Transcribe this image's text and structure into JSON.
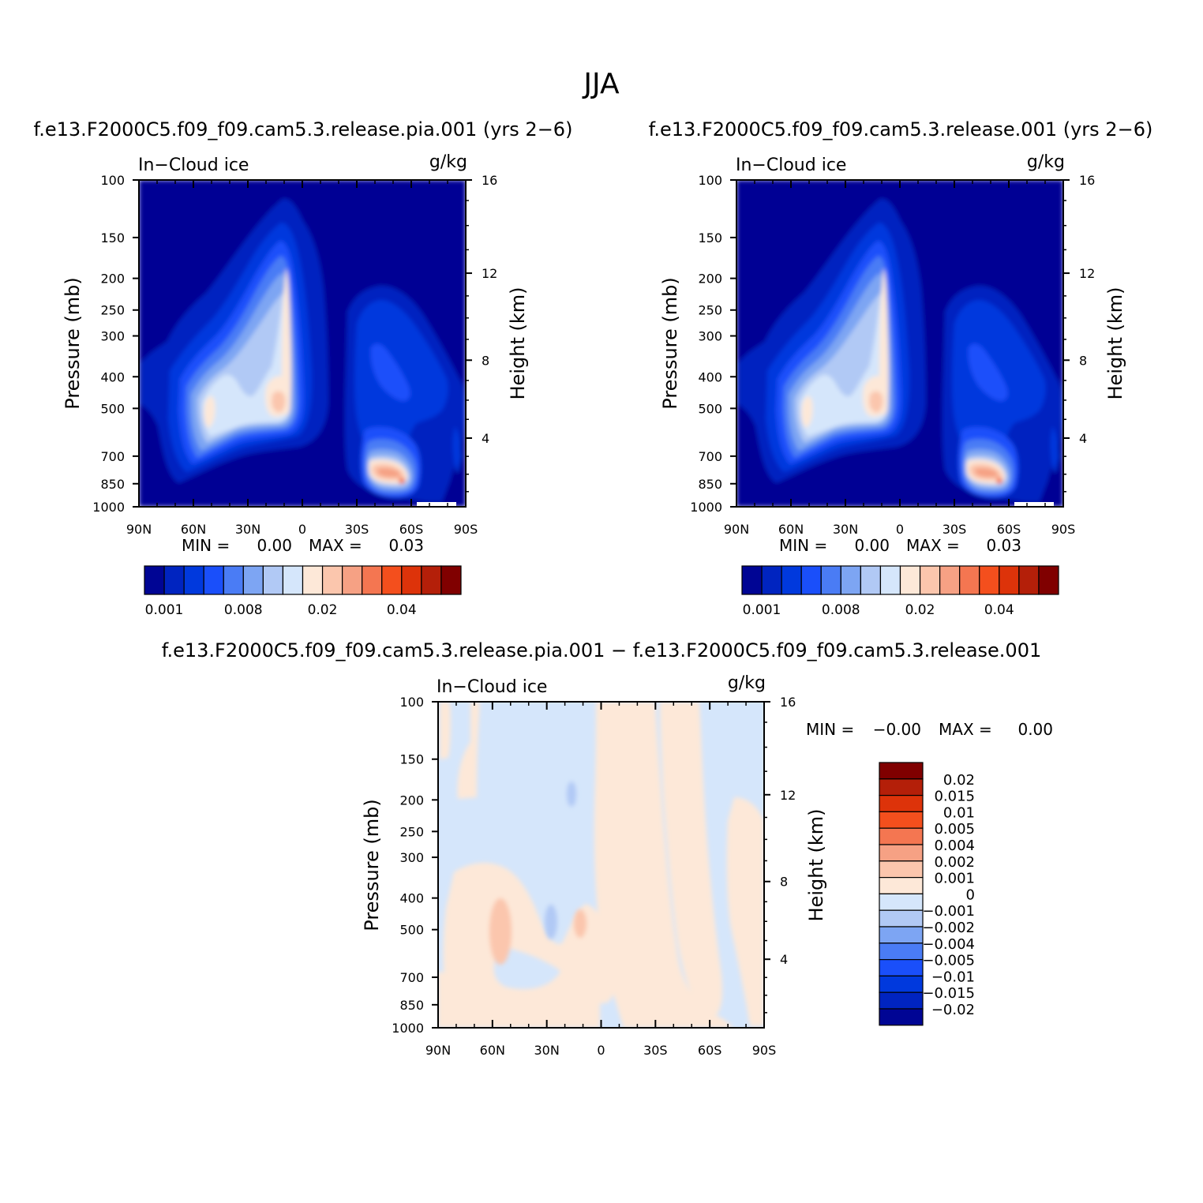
{
  "figure": {
    "title": "JJA"
  },
  "panels": {
    "left": {
      "case_title": "f.e13.F2000C5.f09_f09.cam5.3.release.pia.001  (yrs 2−6)",
      "left_label": "In−Cloud ice",
      "right_label": "g/kg",
      "min_label": "MIN =",
      "min_value": "0.00",
      "max_label": "MAX =",
      "max_value": "0.03"
    },
    "right": {
      "case_title": "f.e13.F2000C5.f09_f09.cam5.3.release.001  (yrs 2−6)",
      "left_label": "In−Cloud ice",
      "right_label": "g/kg",
      "min_label": "MIN =",
      "min_value": "0.00",
      "max_label": "MAX =",
      "max_value": "0.03"
    },
    "diff": {
      "case_title": "f.e13.F2000C5.f09_f09.cam5.3.release.pia.001  −  f.e13.F2000C5.f09_f09.cam5.3.release.001",
      "left_label": "In−Cloud ice",
      "right_label": "g/kg",
      "min_label": "MIN =",
      "min_value": "−0.00",
      "max_label": "MAX =",
      "max_value": "0.00"
    }
  },
  "axes": {
    "ylabel": "Pressure (mb)",
    "ylabel_right": "Height (km)",
    "pressure_ticks": [
      "100",
      "150",
      "200",
      "250",
      "300",
      "400",
      "500",
      "700",
      "850",
      "1000"
    ],
    "height_ticks": [
      "16",
      "12",
      "8",
      "4"
    ],
    "lat_ticks": [
      "90N",
      "60N",
      "30N",
      "0",
      "30S",
      "60S",
      "90S"
    ]
  },
  "colorbars": {
    "field_labels": [
      "0.001",
      "0.008",
      "0.02",
      "0.04"
    ],
    "field_colors": [
      "#000594",
      "#0024c0",
      "#0039dd",
      "#1a4ffa",
      "#4a7cf5",
      "#7da5f3",
      "#b1c9f5",
      "#d5e6fb",
      "#fde8d8",
      "#fbc6ad",
      "#f6a184",
      "#f47651",
      "#f44f1d",
      "#dd330a",
      "#b41f09",
      "#800000"
    ],
    "diff_labels": [
      "0.02",
      "0.015",
      "0.01",
      "0.005",
      "0.004",
      "0.002",
      "0.001",
      "0",
      "−0.001",
      "−0.002",
      "−0.004",
      "−0.005",
      "−0.01",
      "−0.015",
      "−0.02"
    ],
    "diff_colors": [
      "#800000",
      "#b41f09",
      "#dd330a",
      "#f44f1d",
      "#f47651",
      "#f6a184",
      "#fbc6ad",
      "#fde8d8",
      "#d5e6fb",
      "#b1c9f5",
      "#7da5f3",
      "#4a7cf5",
      "#1a4ffa",
      "#0039dd",
      "#0024c0",
      "#000594"
    ]
  },
  "chart_data": [
    {
      "type": "heatmap",
      "title": "f.e13.F2000C5.f09_f09.cam5.3.release.pia.001  (yrs 2−6)",
      "variable": "In−Cloud ice",
      "units": "g/kg",
      "x_ticks": [
        "90N",
        "60N",
        "30N",
        "0",
        "30S",
        "60S",
        "90S"
      ],
      "y_ticks": [
        100,
        150,
        200,
        250,
        300,
        400,
        500,
        700,
        850,
        1000
      ],
      "y_scale": "log",
      "min": 0.0,
      "max": 0.03
    },
    {
      "type": "heatmap",
      "title": "f.e13.F2000C5.f09_f09.cam5.3.release.001  (yrs 2−6)",
      "variable": "In−Cloud ice",
      "units": "g/kg",
      "x_ticks": [
        "90N",
        "60N",
        "30N",
        "0",
        "30S",
        "60S",
        "90S"
      ],
      "y_ticks": [
        100,
        150,
        200,
        250,
        300,
        400,
        500,
        700,
        850,
        1000
      ],
      "y_scale": "log",
      "min": 0.0,
      "max": 0.03
    },
    {
      "type": "heatmap",
      "title": "f.e13.F2000C5.f09_f09.cam5.3.release.pia.001  −  f.e13.F2000C5.f09_f09.cam5.3.release.001",
      "variable": "In−Cloud ice",
      "units": "g/kg",
      "x_ticks": [
        "90N",
        "60N",
        "30N",
        "0",
        "30S",
        "60S",
        "90S"
      ],
      "y_ticks": [
        100,
        150,
        200,
        250,
        300,
        400,
        500,
        700,
        850,
        1000
      ],
      "y_scale": "log",
      "min": -0.0,
      "max": 0.0
    }
  ]
}
